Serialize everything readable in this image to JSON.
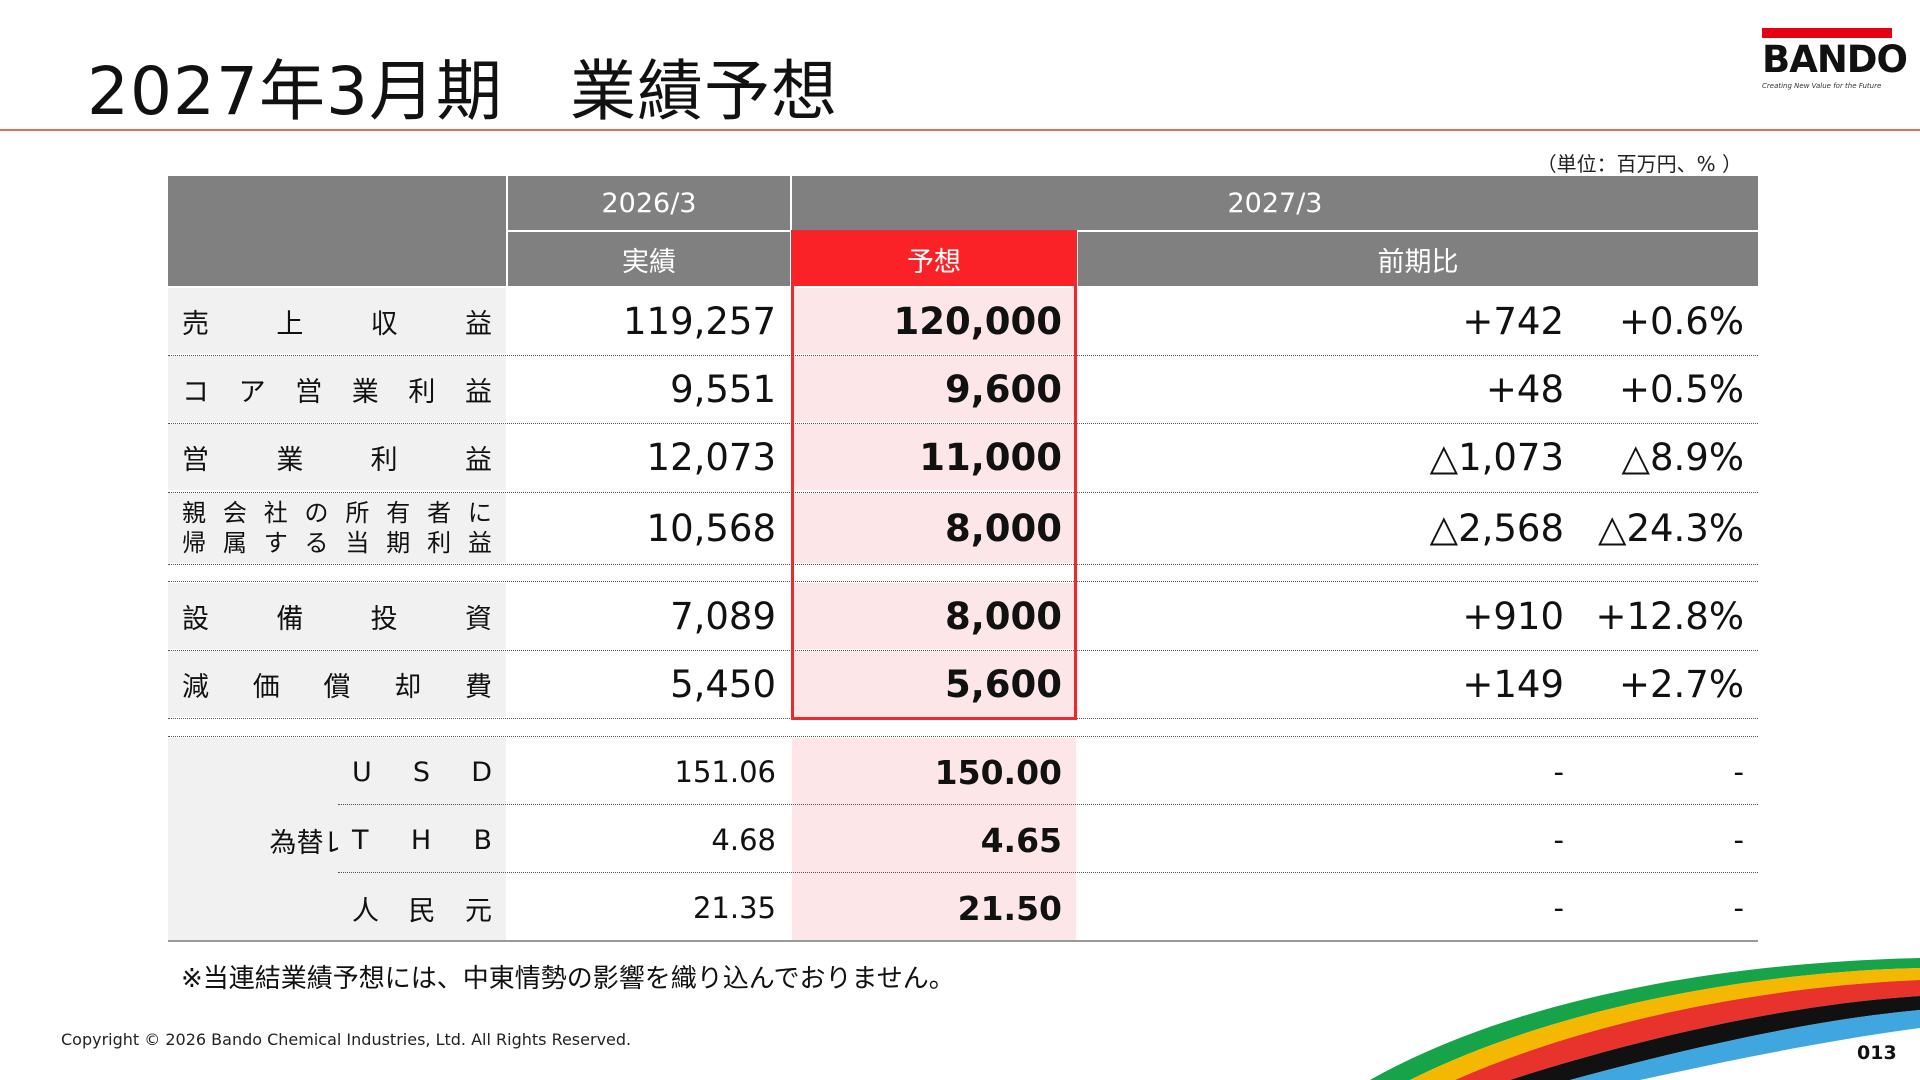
{
  "header": {
    "title": "2027年3月期　業績予想"
  },
  "logo": {
    "word": "BANDO",
    "tagline": "Creating New Value for the Future",
    "color": "#e60012"
  },
  "unit": "（単位：百万円、% ）",
  "table": {
    "period_prev": "2026/3",
    "period_next": "2027/3",
    "col_actual": "実績",
    "col_forecast": "予想",
    "col_yoy": "前期比",
    "rows": [
      {
        "label_chars": [
          "売",
          "上",
          "収",
          "益"
        ],
        "actual": "119,257",
        "forecast": "120,000",
        "diff": "+742",
        "pct": "+0.6%"
      },
      {
        "label_chars": [
          "コ",
          "ア",
          "営",
          "業",
          "利",
          "益"
        ],
        "actual": "9,551",
        "forecast": "9,600",
        "diff": "+48",
        "pct": "+0.5%"
      },
      {
        "label_chars": [
          "営",
          "業",
          "利",
          "益"
        ],
        "actual": "12,073",
        "forecast": "11,000",
        "diff": "△1,073",
        "pct": "△8.9%"
      },
      {
        "label_line1": [
          "親",
          "会",
          "社",
          "の",
          "所",
          "有",
          "者",
          "に"
        ],
        "label_line2": [
          "帰",
          "属",
          "す",
          "る",
          "当",
          "期",
          "利",
          "益"
        ],
        "actual": "10,568",
        "forecast": "8,000",
        "diff": "△2,568",
        "pct": "△24.3%"
      },
      {
        "label_chars": [
          "設",
          "備",
          "投",
          "資"
        ],
        "actual": "7,089",
        "forecast": "8,000",
        "diff": "+910",
        "pct": "+12.8%"
      },
      {
        "label_chars": [
          "減",
          "価",
          "償",
          "却",
          "費"
        ],
        "actual": "5,450",
        "forecast": "5,600",
        "diff": "+149",
        "pct": "+2.7%"
      }
    ],
    "fx_label": "為替レート",
    "fx_rows": [
      {
        "label_chars": [
          "U",
          "S",
          "D"
        ],
        "actual": "151.06",
        "forecast": "150.00",
        "diff": "-",
        "pct": "-"
      },
      {
        "label_chars": [
          "T",
          "H",
          "B"
        ],
        "actual": "4.68",
        "forecast": "4.65",
        "diff": "-",
        "pct": "-"
      },
      {
        "label_chars": [
          "人",
          "民",
          "元"
        ],
        "actual": "21.35",
        "forecast": "21.50",
        "diff": "-",
        "pct": "-"
      }
    ]
  },
  "note": "※当連結業績予想には、中東情勢の影響を織り込んでおりません。",
  "footer": {
    "copyright": "Copyright © 2026 Bando Chemical Industries, Ltd. All Rights Reserved.",
    "page": "013"
  },
  "colors": {
    "header_gray": "#808080",
    "forecast_red": "#fa2127",
    "forecast_fill": "#fde6e7",
    "label_fill": "#f1f1f1"
  }
}
